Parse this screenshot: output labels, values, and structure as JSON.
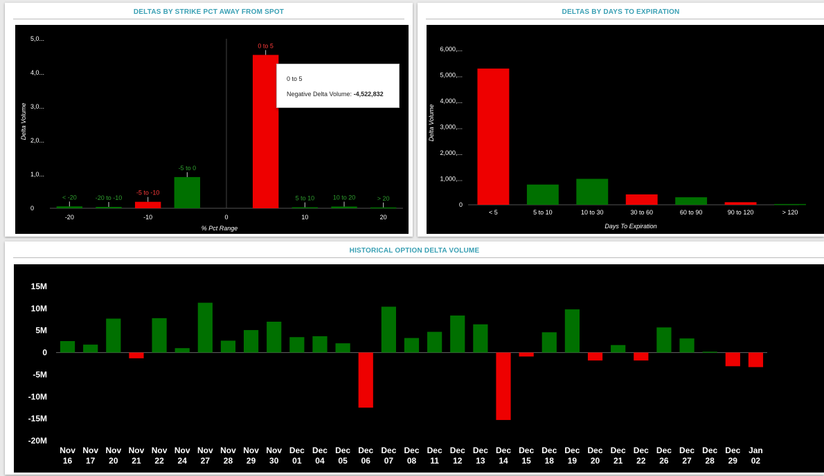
{
  "colors": {
    "positive": "#007000",
    "negative": "#ee0000",
    "title": "#3aa0b4",
    "chart_bg": "#000000"
  },
  "panels": {
    "strike": {
      "title": "DELTAS BY STRIKE PCT AWAY FROM SPOT"
    },
    "expiration": {
      "title": "DELTAS BY DAYS TO EXPIRATION"
    },
    "history": {
      "title": "HISTORICAL OPTION DELTA VOLUME"
    }
  },
  "tooltip": {
    "title": "0 to 5",
    "label": "Negative Delta Volume:",
    "value": "-4,522,832"
  },
  "chart_data": [
    {
      "id": "strike",
      "type": "bar",
      "xlabel": "% Pct Range",
      "ylabel": "Delta Volume",
      "ylim": [
        0,
        5000000
      ],
      "yticks": [
        {
          "v": 0,
          "label": "0"
        },
        {
          "v": 1000000,
          "label": "1,0..."
        },
        {
          "v": 2000000,
          "label": "2,0..."
        },
        {
          "v": 3000000,
          "label": "3,0..."
        },
        {
          "v": 4000000,
          "label": "4,0..."
        },
        {
          "v": 5000000,
          "label": "5,0..."
        }
      ],
      "xlim": [
        -22.5,
        22.5
      ],
      "xticks": [
        {
          "v": -20,
          "label": "-20"
        },
        {
          "v": -10,
          "label": "-10"
        },
        {
          "v": 0,
          "label": "0"
        },
        {
          "v": 10,
          "label": "10"
        },
        {
          "v": 20,
          "label": "20"
        }
      ],
      "bars": [
        {
          "label": "< -20",
          "x": -20,
          "value": 55000,
          "sign": "positive"
        },
        {
          "label": "-20 to -10",
          "x": -15,
          "value": 40000,
          "sign": "positive"
        },
        {
          "label": "-5 to -10",
          "x": -10,
          "value": 190000,
          "sign": "negative"
        },
        {
          "label": "-5 to 0",
          "x": -5,
          "value": 920000,
          "sign": "positive"
        },
        {
          "label": "0 to 5",
          "x": 5,
          "value": 4522832,
          "sign": "negative"
        },
        {
          "label": "5 to 10",
          "x": 10,
          "value": 30000,
          "sign": "positive"
        },
        {
          "label": "10 to 20",
          "x": 15,
          "value": 50000,
          "sign": "positive"
        },
        {
          "label": "> 20",
          "x": 20,
          "value": 25000,
          "sign": "positive"
        }
      ]
    },
    {
      "id": "expiration",
      "type": "bar",
      "xlabel": "Days To Expiration",
      "ylabel": "Delta Volume",
      "ylim": [
        0,
        6000000
      ],
      "yticks": [
        {
          "v": 0,
          "label": "0"
        },
        {
          "v": 1000000,
          "label": "1,000,..."
        },
        {
          "v": 2000000,
          "label": "2,000,..."
        },
        {
          "v": 3000000,
          "label": "3,000,..."
        },
        {
          "v": 4000000,
          "label": "4,000,..."
        },
        {
          "v": 5000000,
          "label": "5,000,..."
        },
        {
          "v": 6000000,
          "label": "6,000,..."
        }
      ],
      "categories": [
        "< 5",
        "5 to 10",
        "10 to 30",
        "30 to 60",
        "60 to 90",
        "90 to 120",
        "> 120"
      ],
      "values": [
        5250000,
        780000,
        1000000,
        400000,
        290000,
        100000,
        30000
      ],
      "signs": [
        "negative",
        "positive",
        "positive",
        "negative",
        "positive",
        "negative",
        "positive"
      ]
    },
    {
      "id": "history",
      "type": "bar",
      "xlabel": "",
      "ylabel": "",
      "ylim": [
        -20000000,
        15000000
      ],
      "yticks": [
        {
          "v": 15000000,
          "label": "15M"
        },
        {
          "v": 10000000,
          "label": "10M"
        },
        {
          "v": 5000000,
          "label": "5M"
        },
        {
          "v": 0,
          "label": "0"
        },
        {
          "v": -5000000,
          "label": "-5M"
        },
        {
          "v": -10000000,
          "label": "-10M"
        },
        {
          "v": -15000000,
          "label": "-15M"
        },
        {
          "v": -20000000,
          "label": "-20M"
        }
      ],
      "categories": [
        [
          "Nov",
          "16"
        ],
        [
          "Nov",
          "17"
        ],
        [
          "Nov",
          "20"
        ],
        [
          "Nov",
          "21"
        ],
        [
          "Nov",
          "22"
        ],
        [
          "Nov",
          "24"
        ],
        [
          "Nov",
          "27"
        ],
        [
          "Nov",
          "28"
        ],
        [
          "Nov",
          "29"
        ],
        [
          "Nov",
          "30"
        ],
        [
          "Dec",
          "01"
        ],
        [
          "Dec",
          "04"
        ],
        [
          "Dec",
          "05"
        ],
        [
          "Dec",
          "06"
        ],
        [
          "Dec",
          "07"
        ],
        [
          "Dec",
          "08"
        ],
        [
          "Dec",
          "11"
        ],
        [
          "Dec",
          "12"
        ],
        [
          "Dec",
          "13"
        ],
        [
          "Dec",
          "14"
        ],
        [
          "Dec",
          "15"
        ],
        [
          "Dec",
          "18"
        ],
        [
          "Dec",
          "19"
        ],
        [
          "Dec",
          "20"
        ],
        [
          "Dec",
          "21"
        ],
        [
          "Dec",
          "22"
        ],
        [
          "Dec",
          "26"
        ],
        [
          "Dec",
          "27"
        ],
        [
          "Dec",
          "28"
        ],
        [
          "Dec",
          "29"
        ],
        [
          "Jan",
          "02"
        ]
      ],
      "values": [
        2600000,
        1800000,
        7700000,
        -1300000,
        7800000,
        1000000,
        11300000,
        2700000,
        5100000,
        7000000,
        3500000,
        3700000,
        2100000,
        -12500000,
        10400000,
        3300000,
        4700000,
        8400000,
        6400000,
        -15300000,
        -900000,
        4600000,
        9800000,
        -1800000,
        1700000,
        -1800000,
        5700000,
        3200000,
        200000,
        -3100000,
        -3300000
      ]
    }
  ]
}
